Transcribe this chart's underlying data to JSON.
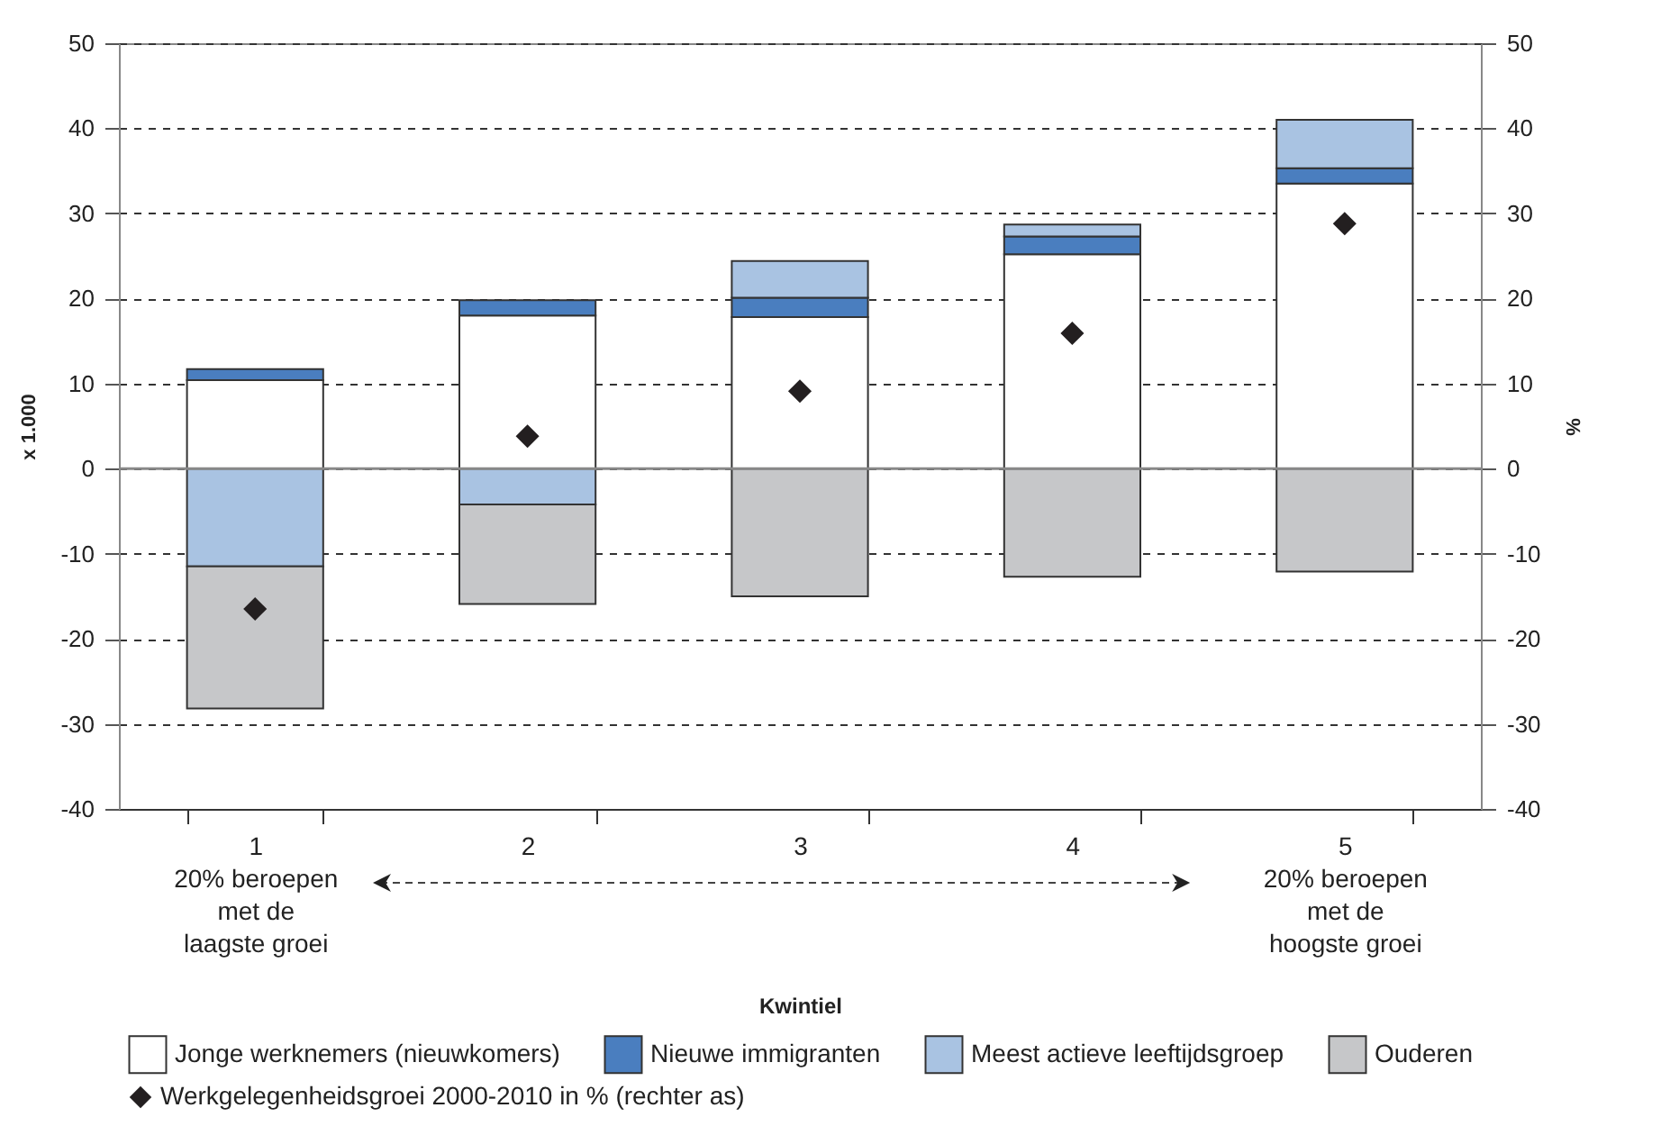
{
  "chart_data": {
    "type": "bar",
    "stacked": true,
    "ylabel": "x 1.000",
    "y2label": "%",
    "categories": [
      "1",
      "2",
      "3",
      "4",
      "5"
    ],
    "series": [
      {
        "name": "Jonge werknemers (nieuwkomers)",
        "color": "#ffffff",
        "values": [
          10.4,
          18,
          17.8,
          25.2,
          33.5
        ]
      },
      {
        "name": "Nieuwe immigranten",
        "color": "#4a7ebf",
        "values": [
          1.3,
          1.8,
          2.3,
          2.1,
          1.8
        ]
      },
      {
        "name": "Meest actieve leeftijdsgroep",
        "color": "#a9c3e2",
        "values": [
          -11.5,
          -4.2,
          4.3,
          1.4,
          5.7
        ]
      },
      {
        "name": "Ouderen",
        "color": "#c6c7c9",
        "values": [
          -16.7,
          -11.7,
          -15,
          -12.7,
          -12.1
        ]
      },
      {
        "name": "Werkgelegenheidsgroei 2000-2010 in % (rechter as)",
        "type": "scatter",
        "axis": "y2",
        "marker": "diamond",
        "color": "#231f20",
        "values": [
          -16.5,
          3.8,
          9.1,
          15.9,
          28.8
        ]
      }
    ],
    "ylim": [
      -40,
      50
    ],
    "yticks": [
      -40,
      -30,
      -20,
      -10,
      0,
      10,
      20,
      30,
      40,
      50
    ],
    "y2lim": [
      -40,
      50
    ],
    "y2ticks": [
      -40,
      -30,
      -20,
      -10,
      0,
      10,
      20,
      30,
      40,
      50
    ],
    "ref_lines": [
      {
        "axis": "y",
        "value": 0
      }
    ],
    "grid": "y",
    "legend": "bottom",
    "annotations": [
      "20% beroepen met de laagste groei",
      "20% beroepen met de hoogste groei",
      "Kwintiel"
    ]
  }
}
